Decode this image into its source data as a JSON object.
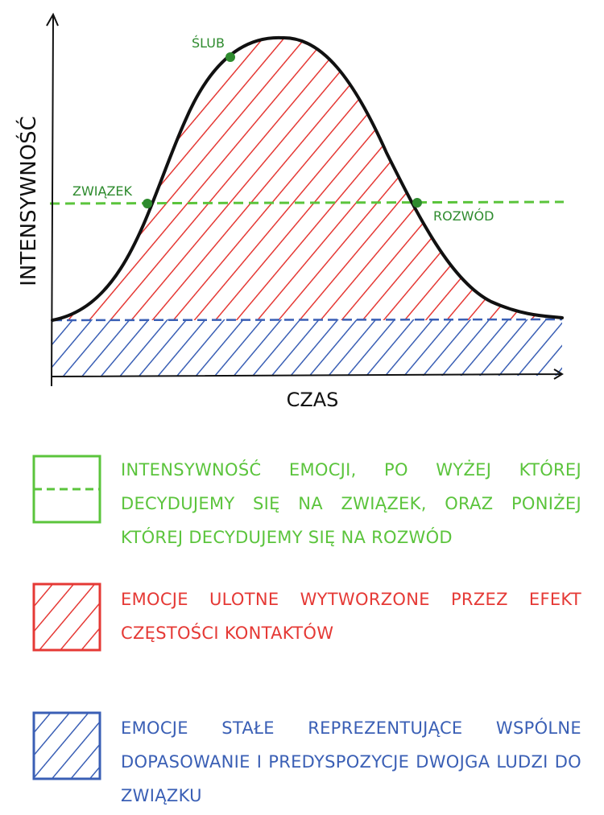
{
  "diagram": {
    "y_axis_label": "INTENSYWNOŚĆ",
    "x_axis_label": "CZAS",
    "points": {
      "relationship": "ZWIĄZEK",
      "wedding": "ŚLUB",
      "divorce": "ROZWÓD"
    }
  },
  "legend": {
    "threshold": "INTENSYWNOŚĆ EMOCJI, PO WYŻEJ KTÓREJ DECYDUJEMY SIĘ NA ZWIĄZEK, ORAZ PONIŻEJ KTÓREJ DECYDUJEMY SIĘ NA ROZWÓD",
    "transient": "EMOCJE ULOTNE WYTWORZONE PRZEZ EFEKT CZĘSTOŚCI KONTAKTÓW",
    "permanent": "EMOCJE STAŁE REPREZENTUJĄCE WSPÓLNE DOPASOWANIE I PREDYSPOZYCJE DWOJGA LUDZI DO ZWIĄZKU"
  },
  "colors": {
    "threshold": "#5bc43c",
    "transient": "#e53935",
    "permanent": "#3a5fb5",
    "curve": "#111111",
    "points": "#2e8b2e"
  }
}
